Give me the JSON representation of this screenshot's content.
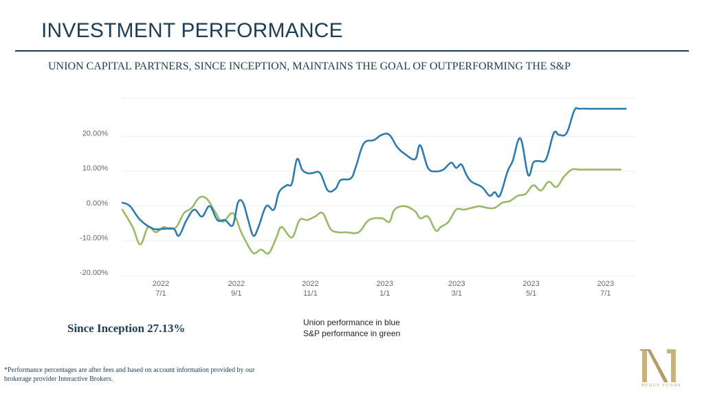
{
  "header": {
    "title": "INVESTMENT PERFORMANCE",
    "subtitle": "UNION CAPITAL PARTNERS, SINCE INCEPTION, MAINTAINS THE GOAL OF OUTPERFORMING THE S&P"
  },
  "chart_data": {
    "type": "line",
    "ylim": [
      -20,
      30
    ],
    "yticks": [
      20,
      10,
      0,
      -10,
      -20
    ],
    "ytick_labels": [
      "20.00%",
      "10.00%",
      "0.00%",
      "-10.00%",
      "-20.00%"
    ],
    "xlim": [
      0,
      100
    ],
    "xticks": [
      {
        "x": 7.5,
        "year": "2022",
        "date": "7/1"
      },
      {
        "x": 22.2,
        "year": "2022",
        "date": "9/1"
      },
      {
        "x": 36.6,
        "year": "2022",
        "date": "11/1"
      },
      {
        "x": 51.1,
        "year": "2023",
        "date": "1/1"
      },
      {
        "x": 65.1,
        "year": "2023",
        "date": "3/1"
      },
      {
        "x": 79.6,
        "year": "2023",
        "date": "5/1"
      },
      {
        "x": 94.1,
        "year": "2023",
        "date": "7/1"
      }
    ],
    "series": [
      {
        "name": "Union",
        "color": "#2b7bb0",
        "x": [
          0,
          1.5,
          3.5,
          6,
          8,
          10,
          11,
          12.5,
          14,
          15.5,
          17,
          18.5,
          20,
          21.5,
          22.5,
          23.5,
          24.5,
          25.5,
          26.5,
          28,
          29.5,
          30.5,
          32,
          33,
          34,
          35,
          36,
          37,
          38.5,
          40,
          41.5,
          42.5,
          44.5,
          45.5,
          47,
          49,
          50.5,
          52,
          53.5,
          55,
          57,
          58,
          59.5,
          61,
          62.5,
          64,
          65,
          66,
          67,
          68,
          70,
          71.5,
          72.5,
          73.5,
          75,
          76,
          77.5,
          79,
          80,
          81,
          82.5,
          84,
          85,
          86.5,
          88,
          89,
          91,
          92,
          93.5,
          95,
          96.5,
          98
        ],
        "values": [
          0,
          -1,
          -5,
          -7.5,
          -7.5,
          -7.5,
          -9.5,
          -5,
          -2,
          -4,
          -1,
          -5,
          -5,
          -6.5,
          0,
          0,
          -5,
          -9.5,
          -7,
          -1,
          -2,
          3,
          5,
          5.5,
          12.5,
          9.5,
          8.5,
          8.5,
          8.5,
          3.5,
          4,
          6.5,
          7,
          10.5,
          17,
          18,
          19.5,
          19.5,
          16,
          14,
          12.5,
          16.5,
          10,
          9,
          9.5,
          11.5,
          10,
          11,
          8,
          6,
          4.5,
          2,
          3,
          2,
          9,
          12,
          18.5,
          8,
          11.5,
          12,
          12.5,
          20,
          19.5,
          20,
          26.5,
          27,
          27,
          27,
          27,
          27,
          27,
          27
        ]
      },
      {
        "name": "S&P",
        "color": "#98b966",
        "x": [
          0,
          2,
          3.5,
          5,
          6.5,
          8,
          9,
          10.5,
          12,
          13.5,
          15,
          16.5,
          18,
          19.5,
          21.5,
          23,
          24,
          25.5,
          27,
          28.5,
          30,
          31,
          33,
          34.5,
          36,
          37.5,
          39,
          40.5,
          42,
          43.5,
          46,
          48,
          50.5,
          52,
          53,
          55,
          57,
          58,
          59.5,
          61,
          62,
          63.5,
          65,
          66.5,
          68,
          69.5,
          71,
          72.5,
          74,
          75.5,
          77,
          78.5,
          80,
          81.5,
          83,
          84.5,
          86,
          87.5,
          89,
          90.5,
          92,
          94,
          95.5,
          97
        ],
        "values": [
          -2,
          -7,
          -12,
          -7,
          -8.5,
          -7,
          -7.5,
          -7,
          -3,
          -1.5,
          1.5,
          1,
          -2.5,
          -5.5,
          -3,
          -8,
          -11,
          -14.5,
          -13.5,
          -14.5,
          -10,
          -7,
          -10,
          -5,
          -5,
          -4,
          -3,
          -7.5,
          -8.5,
          -8.5,
          -8.5,
          -5,
          -4.5,
          -5.5,
          -2,
          -1,
          -2.5,
          -4.5,
          -4,
          -8,
          -7,
          -5.5,
          -2,
          -2,
          -1.5,
          -1,
          -1.5,
          -1.5,
          0,
          0.5,
          2,
          2.5,
          5,
          3.5,
          6,
          4.5,
          7.5,
          9.5,
          9.5,
          9.5,
          9.5,
          9.5,
          9.5,
          9.5
        ]
      }
    ]
  },
  "legend": {
    "line1": "Union performance in blue",
    "line2": "S&P performance in green"
  },
  "since_inception": "Since Inception 27.13%",
  "footnote": "*Performance percentages are after fees and based on account information provided by our brokerage provider Interactive Brokers.",
  "logo": {
    "text": "HEDGE FUNDS",
    "color": "#b59b6a"
  }
}
